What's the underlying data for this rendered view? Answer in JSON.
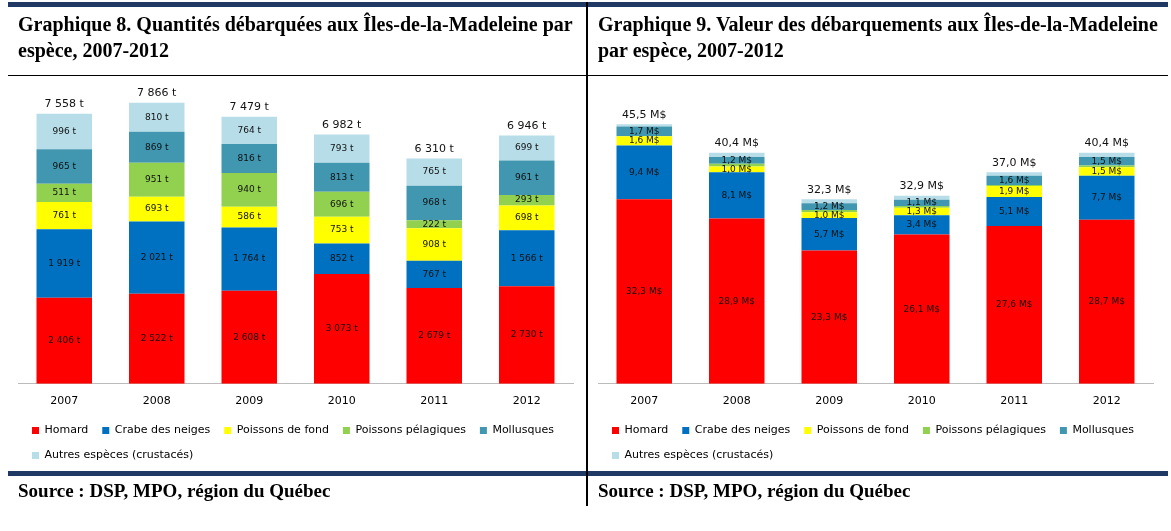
{
  "chart_data": [
    {
      "type": "bar",
      "title": "Graphique 8. Quantités débarquées aux Îles-de-la-Madeleine par espèce, 2007-2012",
      "categories": [
        "2007",
        "2008",
        "2009",
        "2010",
        "2011",
        "2012"
      ],
      "stacked": true,
      "legend": "bottom",
      "tick_labels": "x",
      "grid": false,
      "series": [
        {
          "name": "Homard",
          "color": "#ff0000",
          "values": [
            2406,
            2522,
            2608,
            3073,
            2679,
            2730
          ],
          "value_labels": [
            "2 406 t",
            "2 522 t",
            "2 608 t",
            "3 073 t",
            "2 679 t",
            "2 730 t"
          ]
        },
        {
          "name": "Crabe des neiges",
          "color": "#0070c0",
          "values": [
            1919,
            2021,
            1764,
            852,
            767,
            1566
          ],
          "value_labels": [
            "1 919 t",
            "2 021 t",
            "1 764 t",
            "852 t",
            "767 t",
            "1 566 t"
          ]
        },
        {
          "name": "Poissons de fond",
          "color": "#ffff00",
          "values": [
            761,
            693,
            586,
            753,
            908,
            698
          ],
          "value_labels": [
            "761 t",
            "693 t",
            "586 t",
            "753 t",
            "908 t",
            "698 t"
          ]
        },
        {
          "name": "Poissons pélagiques",
          "color": "#92d050",
          "values": [
            511,
            951,
            940,
            696,
            222,
            293
          ],
          "value_labels": [
            "511 t",
            "951 t",
            "940 t",
            "696 t",
            "222 t",
            "293 t"
          ]
        },
        {
          "name": "Mollusques",
          "color": "#4196b0",
          "values": [
            965,
            869,
            816,
            813,
            968,
            961
          ],
          "value_labels": [
            "965 t",
            "869 t",
            "816 t",
            "813 t",
            "968 t",
            "961 t"
          ]
        },
        {
          "name": "Autres espèces (crustacés)",
          "color": "#b7dde8",
          "values": [
            996,
            810,
            764,
            793,
            765,
            699
          ],
          "value_labels": [
            "996 t",
            "810 t",
            "764 t",
            "793 t",
            "765 t",
            "699 t"
          ]
        }
      ],
      "totals": [
        "7 558 t",
        "7 866 t",
        "7 479 t",
        "6 982 t",
        "6 310 t",
        "6 946 t"
      ],
      "annotations": [
        "Source : DSP, MPO, région du Québec"
      ]
    },
    {
      "type": "bar",
      "title": "Graphique 9. Valeur des débarquements aux Îles-de-la-Madeleine par espèce, 2007-2012",
      "categories": [
        "2007",
        "2008",
        "2009",
        "2010",
        "2011",
        "2012"
      ],
      "stacked": true,
      "legend": "bottom",
      "tick_labels": "x",
      "grid": false,
      "series": [
        {
          "name": "Homard",
          "color": "#ff0000",
          "values": [
            32.3,
            28.9,
            23.3,
            26.1,
            27.6,
            28.7
          ],
          "value_labels": [
            "32,3 M$",
            "28,9 M$",
            "23,3 M$",
            "26,1 M$",
            "27,6 M$",
            "28,7 M$"
          ]
        },
        {
          "name": "Crabe des neiges",
          "color": "#0070c0",
          "values": [
            9.4,
            8.1,
            5.7,
            3.4,
            5.1,
            7.7
          ],
          "value_labels": [
            "9,4 M$",
            "8,1 M$",
            "5,7 M$",
            "3,4 M$",
            "5,1 M$",
            "7,7 M$"
          ]
        },
        {
          "name": "Poissons de fond",
          "color": "#ffff00",
          "values": [
            1.6,
            1.0,
            1.0,
            1.3,
            1.9,
            1.5
          ],
          "value_labels": [
            "1,6 M$",
            "1,0 M$",
            "1,0 M$",
            "1,3 M$",
            "1,9 M$",
            "1,5 M$"
          ]
        },
        {
          "name": "Poissons pélagiques",
          "color": "#92d050",
          "values": [
            null,
            0.5,
            0.4,
            0.3,
            0.2,
            0.3
          ],
          "value_labels": [
            null,
            null,
            null,
            null,
            null,
            null
          ]
        },
        {
          "name": "Mollusques",
          "color": "#4196b0",
          "values": [
            1.7,
            1.2,
            1.2,
            1.1,
            1.6,
            1.5
          ],
          "value_labels": [
            "1,7 M$",
            "1,2 M$",
            "1,2 M$",
            "1,1 M$",
            "1,6 M$",
            "1,5 M$"
          ]
        },
        {
          "name": "Autres espèces (crustacés)",
          "color": "#b7dde8",
          "values": [
            0.4,
            0.7,
            0.7,
            0.7,
            0.6,
            0.7
          ],
          "value_labels": [
            null,
            null,
            null,
            null,
            null,
            null
          ]
        }
      ],
      "totals": [
        "45,5 M$",
        "40,4 M$",
        "32,3 M$",
        "32,9 M$",
        "37,0 M$",
        "40,4 M$"
      ],
      "annotations": [
        "Source : DSP, MPO, région du Québec"
      ]
    }
  ]
}
